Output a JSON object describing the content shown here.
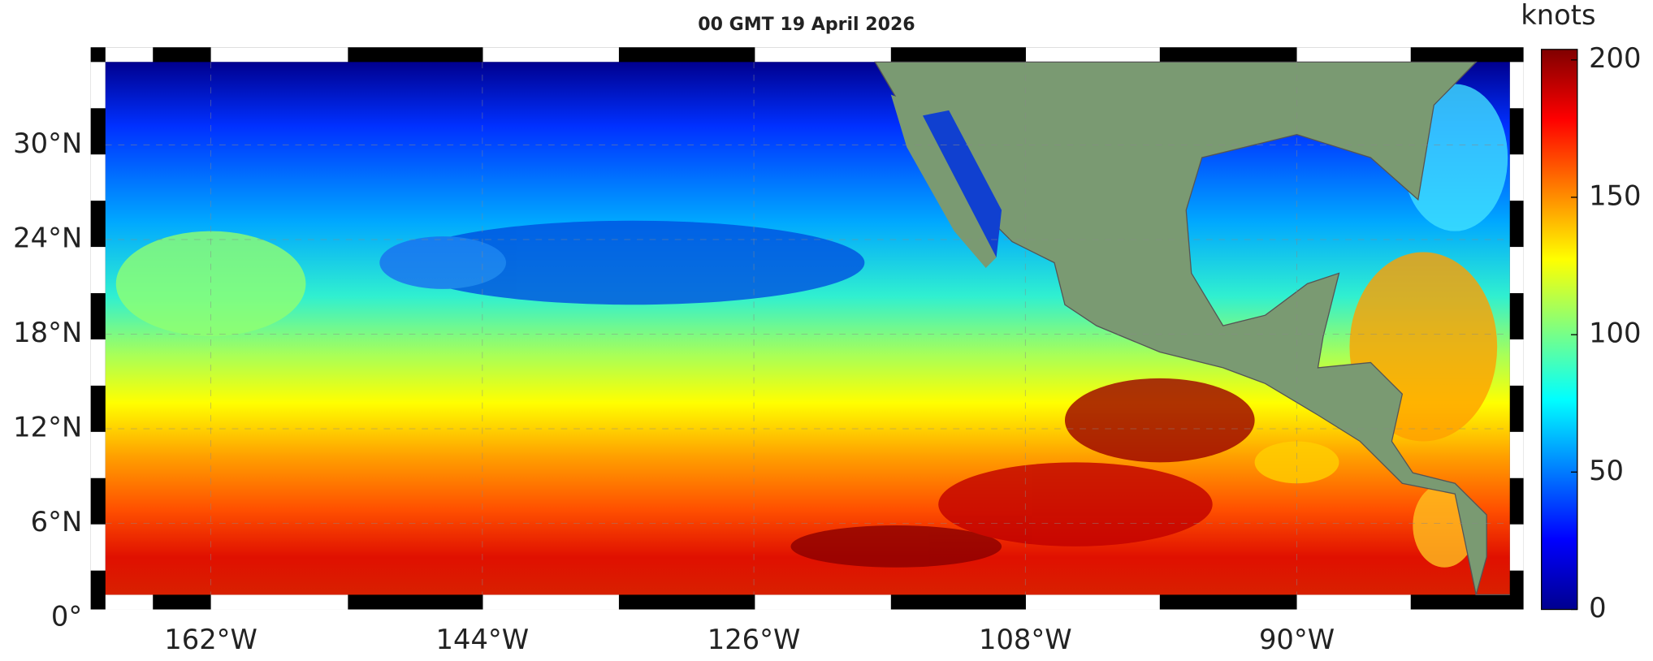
{
  "title": "00 GMT 19 April 2026",
  "colorbar": {
    "label": "knots",
    "lim": [
      0,
      200
    ],
    "ticks": [
      0,
      50,
      100,
      150,
      200
    ]
  },
  "lon_ticks": [
    {
      "value": -162,
      "label": "162°W"
    },
    {
      "value": -144,
      "label": "144°W"
    },
    {
      "value": -126,
      "label": "126°W"
    },
    {
      "value": -108,
      "label": "108°W"
    },
    {
      "value": -90,
      "label": "90°W"
    }
  ],
  "lat_ticks": [
    {
      "value": 0,
      "label": "0°"
    },
    {
      "value": 6,
      "label": "6°N"
    },
    {
      "value": 12,
      "label": "12°N"
    },
    {
      "value": 18,
      "label": "18°N"
    },
    {
      "value": 24,
      "label": "24°N"
    },
    {
      "value": 30,
      "label": "30°N"
    }
  ]
}
